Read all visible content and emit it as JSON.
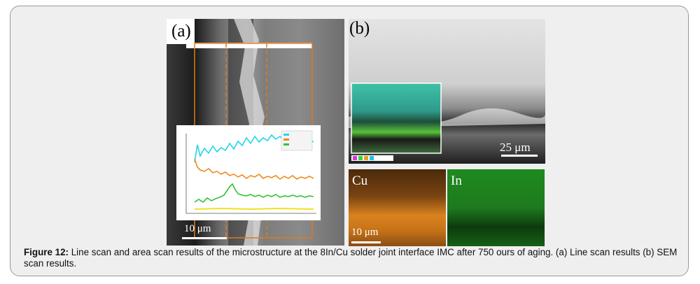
{
  "figure": {
    "panel_a": {
      "label": "(a)",
      "scale_bar": "10 μm"
    },
    "panel_b": {
      "label": "(b)",
      "scale_bar": "25 μm"
    },
    "map_cu": {
      "label": "Cu",
      "scale_bar": "10 μm"
    },
    "map_in": {
      "label": "In"
    }
  },
  "caption": {
    "prefix": "Figure 12:",
    "text": " Line scan and area scan results of the microstructure at the 8In/Cu solder joint interface IMC after 750 ours of aging. (a) Line scan results (b) SEM scan results."
  },
  "colors": {
    "cyan_line": "#22d6e8",
    "orange_line": "#f08a1e",
    "green_line": "#33c233",
    "yellow_line": "#f2e21a",
    "dashed_marker": "#e27a1a"
  }
}
